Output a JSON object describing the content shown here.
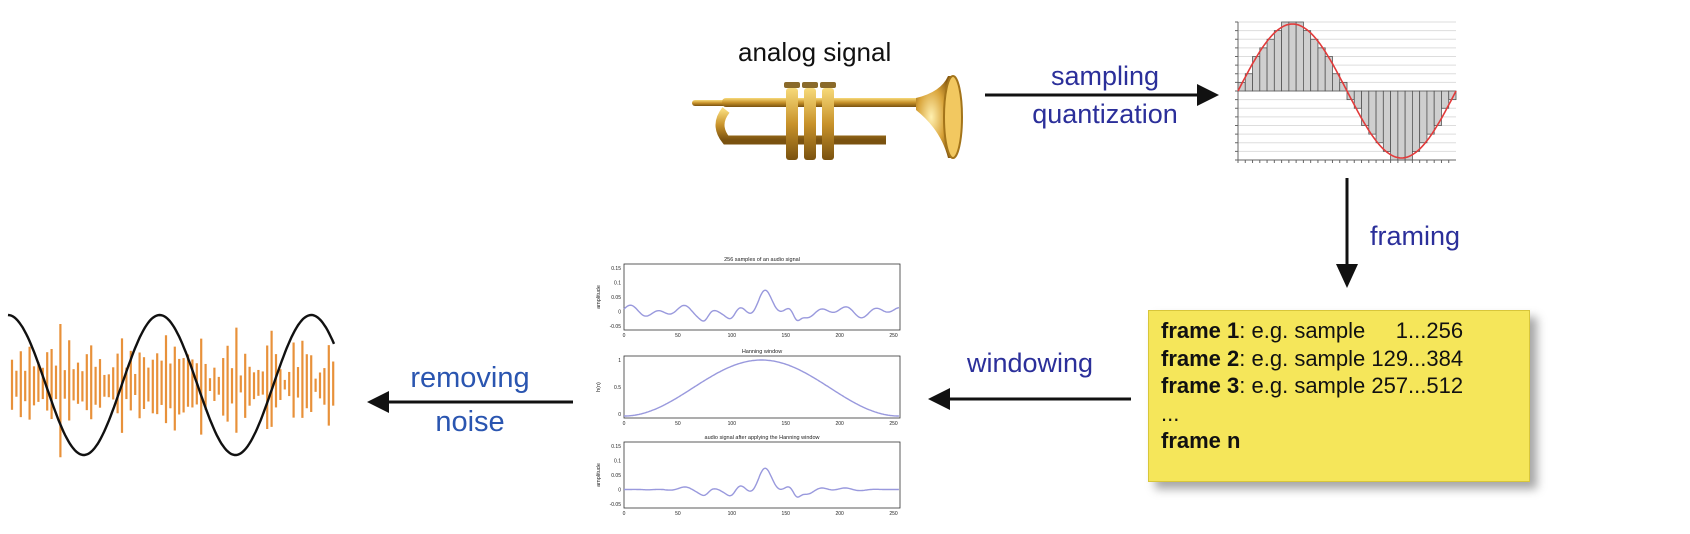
{
  "labels": {
    "analog_signal": "analog signal",
    "sampling": "sampling",
    "quantization": "quantization",
    "framing": "framing",
    "windowing": "windowing",
    "removing": "removing",
    "noise": "noise"
  },
  "frames": [
    {
      "name": "frame 1",
      "text": ": e.g. sample     1...256"
    },
    {
      "name": "frame 2",
      "text": ": e.g. sample 129...384"
    },
    {
      "name": "frame 3",
      "text": ": e.g. sample 257...512"
    },
    {
      "name": "",
      "text": "..."
    },
    {
      "name": "frame n",
      "text": ""
    }
  ],
  "plots": {
    "top_title": "256 samples of an audio signal",
    "middle_title": "Hanning window",
    "bottom_title": "audio signal after applying the Hanning window",
    "ylabel_amp": "amplitude",
    "ylabel_win": "h(n)",
    "xticks": [
      "0",
      "50",
      "100",
      "150",
      "200",
      "250"
    ],
    "yticks_top": [
      "0.15",
      "0.1",
      "0.05",
      "0",
      "-0.05"
    ],
    "yticks_mid": [
      "1",
      "0.5",
      "0"
    ]
  },
  "colors": {
    "blue_label": "#2b2f9a",
    "note_yellow": "#f5e65a",
    "wave_orange": "#e8913a",
    "quantized_fill": "#cfcfcf",
    "smooth_curve": "#e23b3b",
    "plot_line": "#9999dd"
  }
}
